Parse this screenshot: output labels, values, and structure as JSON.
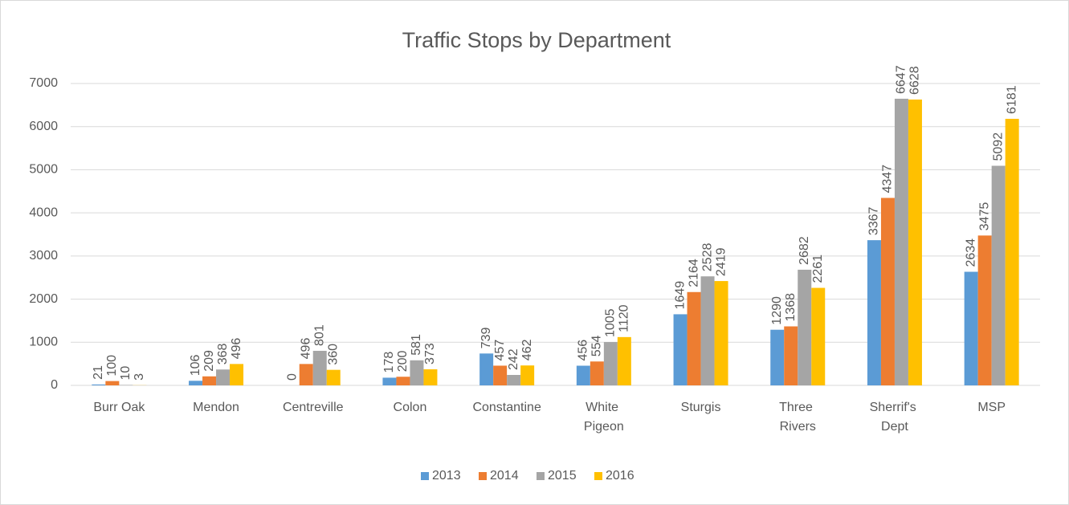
{
  "chart_data": {
    "type": "bar",
    "title": "Traffic Stops by Department",
    "categories": [
      "Burr Oak",
      "Mendon",
      "Centreville",
      "Colon",
      "Constantine",
      "White Pigeon",
      "Sturgis",
      "Three Rivers",
      "Sherrif's Dept",
      "MSP"
    ],
    "series": [
      {
        "name": "2013",
        "color": "#5b9bd5",
        "values": [
          21,
          106,
          0,
          178,
          739,
          456,
          1649,
          1290,
          3367,
          2634
        ]
      },
      {
        "name": "2014",
        "color": "#ed7d31",
        "values": [
          100,
          209,
          496,
          200,
          457,
          554,
          2164,
          1368,
          4347,
          3475
        ]
      },
      {
        "name": "2015",
        "color": "#a5a5a5",
        "values": [
          10,
          368,
          801,
          581,
          242,
          1005,
          2528,
          2682,
          6647,
          5092
        ]
      },
      {
        "name": "2016",
        "color": "#ffc000",
        "values": [
          3,
          496,
          360,
          373,
          462,
          1120,
          2419,
          2261,
          6628,
          6181
        ]
      }
    ],
    "ylim": [
      0,
      7000
    ],
    "yticks": [
      0,
      1000,
      2000,
      3000,
      4000,
      5000,
      6000,
      7000
    ],
    "grid": true,
    "legend": "bottom"
  }
}
